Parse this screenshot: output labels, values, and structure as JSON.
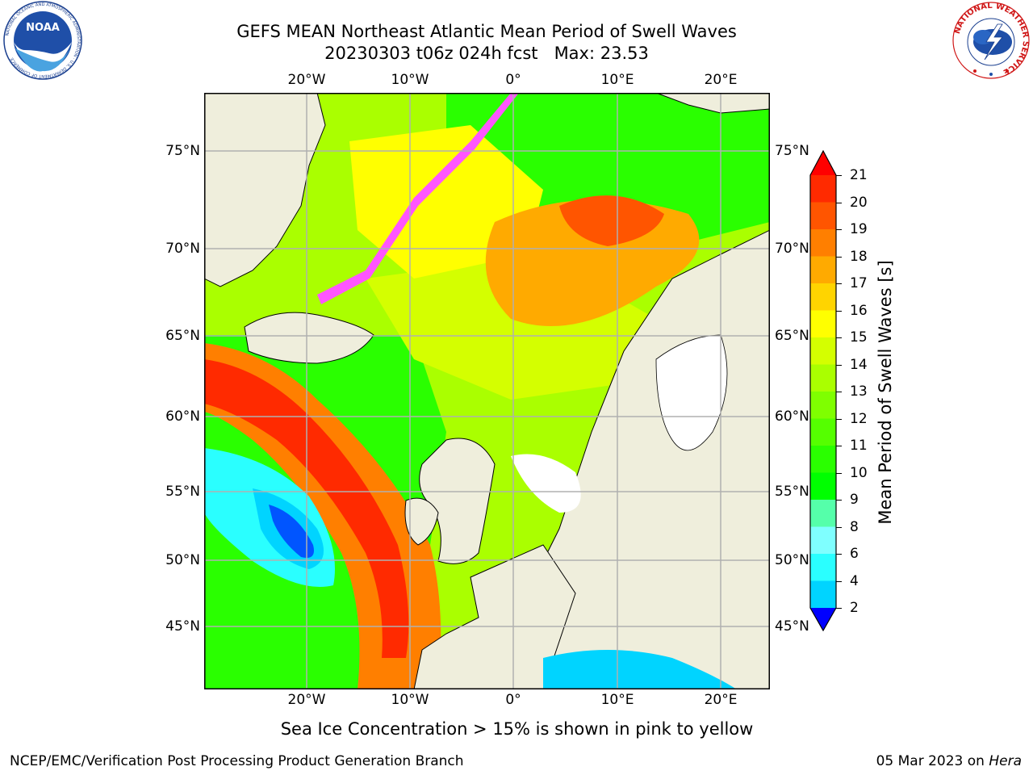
{
  "header": {
    "title_line1": "GEFS MEAN Northeast Atlantic Mean Period of Swell Waves",
    "title_line2": "20230303 t06z 024h fcst   Max: 23.53"
  },
  "map": {
    "longitude_labels": [
      "20°W",
      "10°W",
      "0°",
      "10°E",
      "20°E"
    ],
    "latitude_labels": [
      "75°N",
      "70°N",
      "65°N",
      "60°N",
      "55°N",
      "50°N",
      "45°N"
    ],
    "land_color": "#efeedc",
    "no_data_color": "#ffffff",
    "grid_color": "#b0b0b0"
  },
  "colorbar": {
    "label": "Mean Period of Swell Waves [s]",
    "ticks": [
      "21",
      "20",
      "19",
      "18",
      "17",
      "16",
      "15",
      "14",
      "13",
      "12",
      "11",
      "10",
      "9",
      "8",
      "6",
      "4",
      "2"
    ],
    "colors": [
      "#ff2a00",
      "#ff5500",
      "#ff7f00",
      "#ffaa00",
      "#ffd400",
      "#ffff00",
      "#d4ff00",
      "#aaff00",
      "#7fff00",
      "#55ff00",
      "#2aff00",
      "#00ff00",
      "#55ffaa",
      "#7fffff",
      "#2affff",
      "#00d4ff",
      "#0055ff"
    ],
    "over_color": "#ff0000",
    "under_color": "#0000ff"
  },
  "note": "Sea Ice Concentration > 15% is shown in pink to yellow",
  "footer": {
    "left": "NCEP/EMC/Verification Post Processing Product Generation Branch",
    "right_date": "05 Mar 2023 on",
    "right_host": "Hera"
  },
  "logos": {
    "noaa_text": "NOAA",
    "noaa_ring_text": "NATIONAL OCEANIC AND ATMOSPHERIC ADMINISTRATION · U.S. DEPARTMENT OF COMMERCE",
    "nws_ring_text": "NATIONAL WEATHER SERVICE"
  }
}
